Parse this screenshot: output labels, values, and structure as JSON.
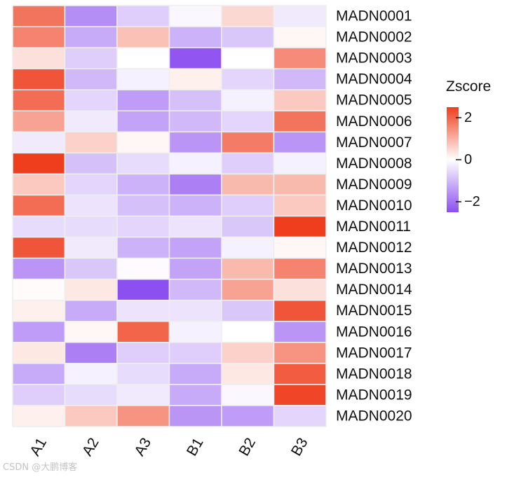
{
  "chart_data": {
    "type": "heatmap",
    "columns": [
      "A1",
      "A2",
      "A3",
      "B1",
      "B2",
      "B3"
    ],
    "rows": [
      "MADN0001",
      "MADN0002",
      "MADN0003",
      "MADN0004",
      "MADN0005",
      "MADN0006",
      "MADN0007",
      "MADN0008",
      "MADN0009",
      "MADN0010",
      "MADN0011",
      "MADN0012",
      "MADN0013",
      "MADN0014",
      "MADN0015",
      "MADN0016",
      "MADN0017",
      "MADN0018",
      "MADN0019",
      "MADN0020"
    ],
    "values": [
      [
        1.8,
        -1.6,
        -0.7,
        -0.1,
        0.5,
        -0.3
      ],
      [
        1.6,
        -1.2,
        0.8,
        -1.1,
        -0.8,
        0.1
      ],
      [
        0.4,
        -0.7,
        0.0,
        -2.4,
        0.0,
        1.5
      ],
      [
        2.2,
        -1.0,
        -0.2,
        0.2,
        -0.6,
        -1.0
      ],
      [
        1.9,
        -0.6,
        -1.4,
        -0.9,
        -0.2,
        0.7
      ],
      [
        1.2,
        -0.3,
        -1.3,
        -1.0,
        -0.6,
        1.8
      ],
      [
        -0.3,
        0.6,
        0.1,
        -1.5,
        1.7,
        -1.5
      ],
      [
        2.5,
        -0.9,
        -0.5,
        -0.2,
        -0.7,
        -0.2
      ],
      [
        0.7,
        -0.6,
        -1.1,
        -1.8,
        0.9,
        0.9
      ],
      [
        1.9,
        -0.4,
        -0.9,
        -1.1,
        -0.7,
        0.7
      ],
      [
        -0.5,
        -0.5,
        -0.6,
        -0.4,
        -0.8,
        2.5
      ],
      [
        2.2,
        -0.3,
        -1.1,
        -1.3,
        -0.2,
        0.1
      ],
      [
        -1.5,
        -0.8,
        -0.05,
        -1.3,
        0.9,
        1.6
      ],
      [
        0.05,
        0.3,
        -2.5,
        -1.0,
        1.2,
        0.4
      ],
      [
        0.2,
        -1.2,
        -0.4,
        -0.4,
        -0.8,
        2.2
      ],
      [
        -1.4,
        0.1,
        2.0,
        -0.2,
        0.0,
        -1.5
      ],
      [
        0.3,
        -1.8,
        -0.7,
        -0.7,
        0.6,
        1.4
      ],
      [
        -1.2,
        -0.2,
        -0.5,
        -1.2,
        0.3,
        2.1
      ],
      [
        -0.7,
        -0.5,
        -0.3,
        -1.2,
        -0.1,
        2.4
      ],
      [
        0.2,
        0.7,
        1.4,
        -1.5,
        -1.4,
        -0.6
      ]
    ],
    "zlim": [
      -2.5,
      2.5
    ],
    "colors": {
      "low": "#8c4ff0",
      "mid": "#ffffff",
      "high": "#ef3e1e",
      "grid": "#eeeeee"
    },
    "legend": {
      "title": "Zscore",
      "ticks": [
        2,
        0,
        -2
      ],
      "position": "right"
    }
  },
  "watermark": "CSDN @大鹏博客"
}
